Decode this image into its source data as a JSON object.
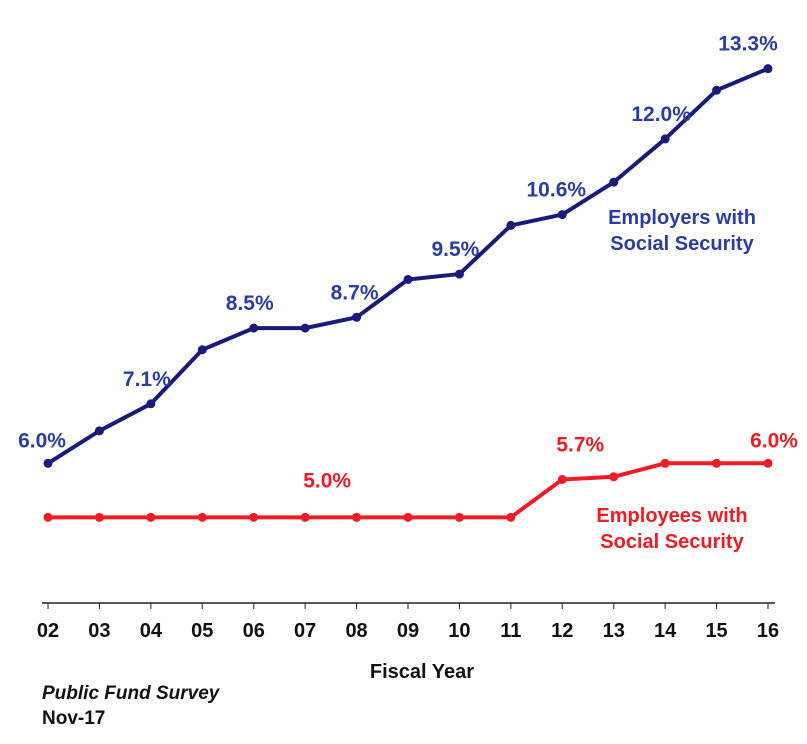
{
  "chart_data": {
    "type": "line",
    "title": "",
    "xlabel": "Fiscal Year",
    "ylabel": "",
    "categories": [
      "02",
      "03",
      "04",
      "05",
      "06",
      "07",
      "08",
      "09",
      "10",
      "11",
      "12",
      "13",
      "14",
      "15",
      "16"
    ],
    "ylim": [
      3.6,
      14.2
    ],
    "grid": false,
    "legend": "inline labels",
    "series": [
      {
        "name": "Employers with Social Security",
        "name_lines": [
          "Employers with",
          "Social Security"
        ],
        "color": "#1a1a7a",
        "label_color": "#2b3da0",
        "values": [
          6.0,
          6.6,
          7.1,
          8.1,
          8.5,
          8.5,
          8.7,
          9.4,
          9.5,
          10.4,
          10.6,
          11.2,
          12.0,
          12.9,
          13.3
        ],
        "data_labels": [
          {
            "index": 0,
            "text": "6.0%"
          },
          {
            "index": 2,
            "text": "7.1%"
          },
          {
            "index": 4,
            "text": "8.5%"
          },
          {
            "index": 6,
            "text": "8.7%"
          },
          {
            "index": 8,
            "text": "9.5%"
          },
          {
            "index": 10,
            "text": "10.6%"
          },
          {
            "index": 12,
            "text": "12.0%"
          },
          {
            "index": 14,
            "text": "13.3%"
          }
        ]
      },
      {
        "name": "Employees with Social Security",
        "name_lines": [
          "Employees with",
          "Social Security"
        ],
        "color": "#ee1c24",
        "label_color": "#ee1c24",
        "values": [
          5.0,
          5.0,
          5.0,
          5.0,
          5.0,
          5.0,
          5.0,
          5.0,
          5.0,
          5.0,
          5.7,
          5.75,
          6.0,
          6.0,
          6.0
        ],
        "data_labels": [
          {
            "index": 5,
            "text": "5.0%"
          },
          {
            "index": 10,
            "text": "5.7%"
          },
          {
            "index": 14,
            "text": "6.0%"
          }
        ]
      }
    ]
  },
  "footer": {
    "source": "Public Fund Survey",
    "date": "Nov-17"
  }
}
